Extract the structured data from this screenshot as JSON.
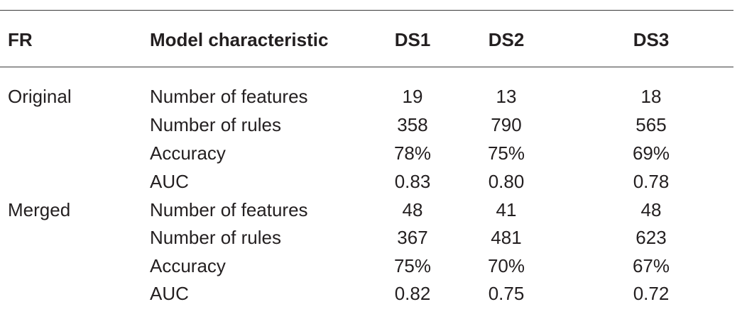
{
  "table": {
    "headers": {
      "fr": "FR",
      "model": "Model characteristic",
      "ds1": "DS1",
      "ds2": "DS2",
      "ds3": "DS3"
    },
    "rows": [
      {
        "fr": "Original",
        "model": "Number of features",
        "ds1": "19",
        "ds2": "13",
        "ds3": "18"
      },
      {
        "fr": "",
        "model": "Number of rules",
        "ds1": "358",
        "ds2": "790",
        "ds3": "565"
      },
      {
        "fr": "",
        "model": "Accuracy",
        "ds1": "78%",
        "ds2": "75%",
        "ds3": "69%"
      },
      {
        "fr": "",
        "model": "AUC",
        "ds1": "0.83",
        "ds2": "0.80",
        "ds3": "0.78"
      },
      {
        "fr": "Merged",
        "model": "Number of features",
        "ds1": "48",
        "ds2": "41",
        "ds3": "48"
      },
      {
        "fr": "",
        "model": "Number of rules",
        "ds1": "367",
        "ds2": "481",
        "ds3": "623"
      },
      {
        "fr": "",
        "model": "Accuracy",
        "ds1": "75%",
        "ds2": "70%",
        "ds3": "67%"
      },
      {
        "fr": "",
        "model": "AUC",
        "ds1": "0.82",
        "ds2": "0.75",
        "ds3": "0.72"
      }
    ]
  }
}
